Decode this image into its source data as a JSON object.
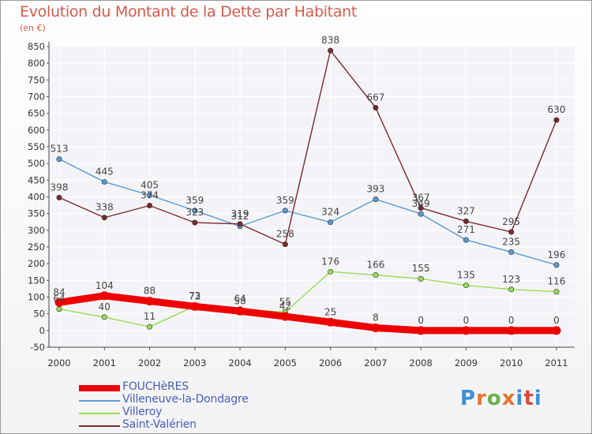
{
  "title": "Evolution du Montant de la Dette par Habitant",
  "subtitle": "(en €)",
  "logo": {
    "letters": [
      "P",
      "r",
      "o",
      "x",
      "i",
      "t",
      "i"
    ],
    "colors": [
      "#3d8fd6",
      "#e8732a",
      "#6ab04c",
      "#e8732a",
      "#3d8fd6",
      "#d94c3c",
      "#3d8fd6"
    ]
  },
  "chart_data": {
    "type": "line",
    "title": "Evolution du Montant de la Dette par Habitant",
    "ylabel": "(en €)",
    "x": [
      "2000",
      "2001",
      "2002",
      "2003",
      "2004",
      "2005",
      "2006",
      "2007",
      "2008",
      "2009",
      "2010",
      "2011"
    ],
    "ylim": [
      -50,
      850
    ],
    "yticks": [
      -50,
      0,
      50,
      100,
      150,
      200,
      250,
      300,
      350,
      400,
      450,
      500,
      550,
      600,
      650,
      700,
      750,
      800,
      850
    ],
    "grid": true,
    "legend_position": "bottom-left",
    "series": [
      {
        "name": "FOUCHèRES",
        "color": "#ee0000",
        "values": [
          84,
          104,
          88,
          72,
          58,
          42,
          25,
          8,
          0,
          0,
          0,
          0
        ],
        "labels": [
          "84",
          "104",
          "88",
          "72",
          "58",
          "42",
          "25",
          "8",
          "0",
          "0",
          "0",
          "0"
        ]
      },
      {
        "name": "Villeneuve-la-Dondagre",
        "color": "#5a9bd4",
        "values": [
          513,
          445,
          405,
          359,
          312,
          359,
          324,
          393,
          349,
          271,
          235,
          196
        ],
        "labels": [
          "513",
          "445",
          "405",
          "359",
          "312",
          "359",
          "324",
          "393",
          "349",
          "271",
          "235",
          "196"
        ]
      },
      {
        "name": "Villeroy",
        "color": "#99dd55",
        "values": [
          64,
          40,
          11,
          73,
          64,
          55,
          176,
          166,
          155,
          135,
          123,
          116
        ],
        "labels": [
          "64",
          "40",
          "11",
          "73",
          "64",
          "55",
          "176",
          "166",
          "155",
          "135",
          "123",
          "116"
        ]
      },
      {
        "name": "Saint-Valérien",
        "color": "#7a2a2a",
        "values": [
          398,
          338,
          374,
          323,
          319,
          258,
          838,
          667,
          367,
          327,
          295,
          630
        ],
        "labels": [
          "398",
          "338",
          "374",
          "323",
          "319",
          "258",
          "838",
          "667",
          "367",
          "327",
          "295",
          "630"
        ]
      }
    ]
  }
}
